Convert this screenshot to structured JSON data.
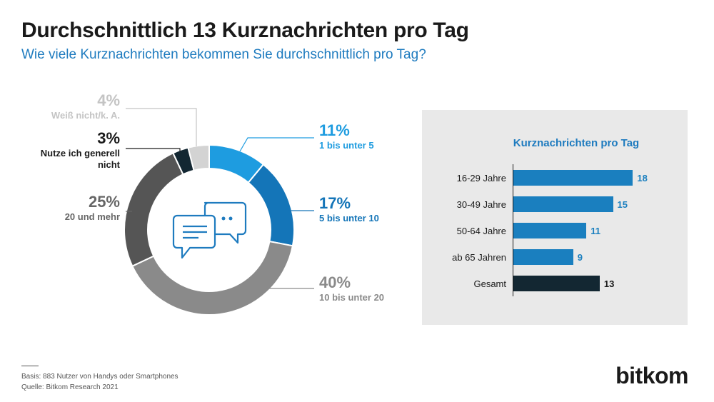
{
  "title": "Durchschnittlich 13 Kurznachrichten pro Tag",
  "subtitle": "Wie viele Kurznachrichten bekommen Sie durchschnittlich pro Tag?",
  "colors": {
    "light_blue": "#1e9ce0",
    "mid_blue": "#1475b8",
    "light_gray": "#8a8a8a",
    "dark_gray": "#555555",
    "navy": "#132732",
    "pale_gray": "#d3d3d3",
    "bar_blue": "#1a7fbf",
    "bar_dark": "#132732"
  },
  "donut_labels": {
    "unk": {
      "pct": "4%",
      "cat": "Weiß nicht/k. A."
    },
    "none": {
      "pct": "3%",
      "cat": "Nutze ich generell nicht"
    },
    "more20": {
      "pct": "25%",
      "cat": "20 und mehr"
    },
    "one": {
      "pct": "11%",
      "cat": "1 bis unter 5"
    },
    "five": {
      "pct": "17%",
      "cat": "5 bis unter 10"
    },
    "ten": {
      "pct": "40%",
      "cat": "10 bis unter 20"
    }
  },
  "center_icon": "speech-bubbles-icon",
  "panel": {
    "title": "Kurznachrichten pro Tag",
    "rows": [
      {
        "label": "16-29 Jahre",
        "value_text": "18"
      },
      {
        "label": "30-49 Jahre",
        "value_text": "15"
      },
      {
        "label": "50-64 Jahre",
        "value_text": "11"
      },
      {
        "label": "ab 65 Jahren",
        "value_text": "9"
      },
      {
        "label": "Gesamt",
        "value_text": "13"
      }
    ]
  },
  "footer": {
    "basis": "Basis: 883 Nutzer von Handys oder Smartphones",
    "source": "Quelle: Bitkom Research 2021"
  },
  "brand": "bitkom",
  "chart_data": [
    {
      "type": "pie",
      "title": "",
      "categories": [
        "1 bis unter 5",
        "5 bis unter 10",
        "10 bis unter 20",
        "20 und mehr",
        "Nutze ich generell nicht",
        "Weiß nicht/k. A."
      ],
      "values": [
        11,
        17,
        40,
        25,
        3,
        4
      ],
      "colors": [
        "#1e9ce0",
        "#1475b8",
        "#8a8a8a",
        "#555555",
        "#132732",
        "#d3d3d3"
      ]
    },
    {
      "type": "bar",
      "title": "Kurznachrichten pro Tag",
      "categories": [
        "16-29 Jahre",
        "30-49 Jahre",
        "50-64 Jahre",
        "ab 65 Jahren",
        "Gesamt"
      ],
      "values": [
        18,
        15,
        11,
        9,
        13
      ],
      "colors": [
        "#1a7fbf",
        "#1a7fbf",
        "#1a7fbf",
        "#1a7fbf",
        "#132732"
      ],
      "xlim": [
        0,
        20
      ],
      "grid": false
    }
  ]
}
